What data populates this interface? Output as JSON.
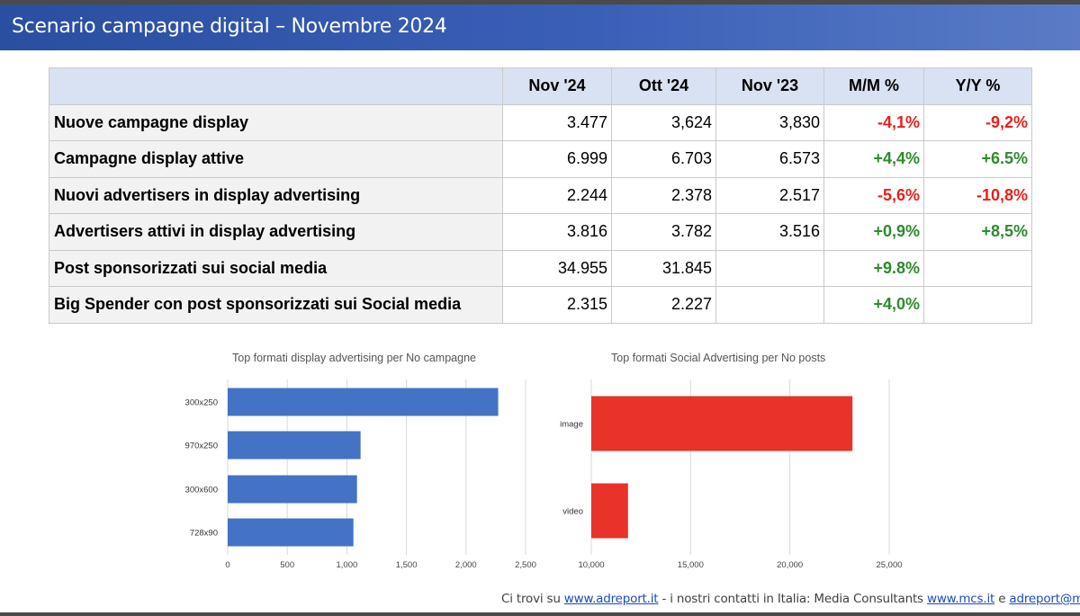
{
  "title": "Scenario campagne digital – Novembre 2024",
  "table": {
    "headers": [
      "",
      "Nov '24",
      "Ott '24",
      "Nov '23",
      "M/M %",
      "Y/Y %"
    ],
    "rows": [
      {
        "label": "Nuove campagne display",
        "nov24": "3.477",
        "ott24": "3,624",
        "nov23": "3,830",
        "mm": "-4,1%",
        "yy": "-9,2%"
      },
      {
        "label": "Campagne display attive",
        "nov24": "6.999",
        "ott24": "6.703",
        "nov23": "6.573",
        "mm": "+4,4%",
        "yy": "+6.5%"
      },
      {
        "label": "Nuovi advertisers in display advertising",
        "nov24": "2.244",
        "ott24": "2.378",
        "nov23": "2.517",
        "mm": "-5,6%",
        "yy": "-10,8%"
      },
      {
        "label": "Advertisers attivi in display advertising",
        "nov24": "3.816",
        "ott24": "3.782",
        "nov23": "3.516",
        "mm": "+0,9%",
        "yy": "+8,5%"
      },
      {
        "label": "Post sponsorizzati sui social media",
        "nov24": "34.955",
        "ott24": "31.845",
        "nov23": "",
        "mm": "+9.8%",
        "yy": ""
      },
      {
        "label": "Big Spender con post sponsorizzati sui Social media",
        "nov24": "2.315",
        "ott24": "2.227",
        "nov23": "",
        "mm": "+4,0%",
        "yy": ""
      }
    ]
  },
  "colors": {
    "negative": "#e6201c",
    "positive": "#2e8b2e",
    "bar_blue": "#4472c4",
    "bar_red": "#e8322a",
    "header_bg": "#d9e2f3"
  },
  "chart_data": [
    {
      "type": "bar",
      "orientation": "horizontal",
      "title": "Top formati display advertising per No campagne",
      "categories": [
        "300x250",
        "970x250",
        "300x600",
        "728x90"
      ],
      "values": [
        2270,
        1115,
        1085,
        1055
      ],
      "xlim": [
        0,
        2500
      ],
      "ticks": [
        "0",
        "500",
        "1,000",
        "1,500",
        "2,000",
        "2,500"
      ],
      "tick_values": [
        0,
        500,
        1000,
        1500,
        2000,
        2500
      ],
      "grid": true,
      "color": "#4472c4"
    },
    {
      "type": "bar",
      "orientation": "horizontal",
      "title": "Top formati Social Advertising per No posts",
      "categories": [
        "image",
        "video"
      ],
      "values": [
        23150,
        11850
      ],
      "xlim": [
        10000,
        25000
      ],
      "ticks": [
        "10,000",
        "15,000",
        "20,000",
        "25,000"
      ],
      "tick_values": [
        10000,
        15000,
        20000,
        25000
      ],
      "grid": true,
      "color": "#e8322a"
    }
  ],
  "footer": {
    "prefix": "Ci trovi su ",
    "link1": "www.adreport.it",
    "middle": " - i nostri contatti in Italia: Media Consultants ",
    "link2": "www.mcs.it",
    "sep": "  e ",
    "link3": "adreport@mcs.it"
  }
}
